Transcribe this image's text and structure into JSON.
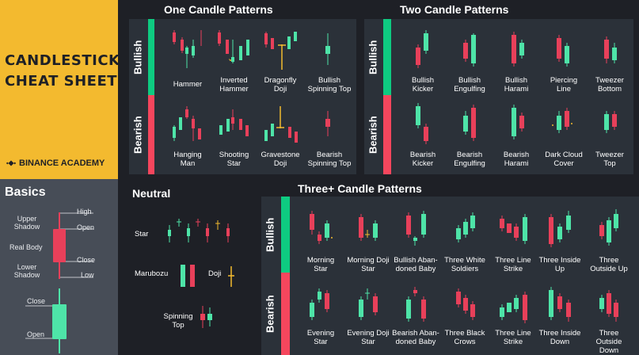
{
  "title": {
    "line1": "CANDLESTICK",
    "line2": "CHEAT SHEET"
  },
  "brand": {
    "name": "BINANCE ACADEMY",
    "logo_icon": "binance-diamond-icon"
  },
  "basics": {
    "title": "Basics",
    "labels": {
      "upper_shadow": "Upper Shadow",
      "real_body": "Real Body",
      "lower_shadow": "Lower Shadow",
      "high": "High",
      "open": "Open",
      "close": "Close",
      "low": "Low",
      "close2": "Close",
      "open2": "Open"
    }
  },
  "one_candle": {
    "title": "One Candle Patterns",
    "bullish_label": "Bullish",
    "bearish_label": "Bearish",
    "bullish": [
      "Hammer",
      "Inverted Hammer",
      "Dragonfly Doji",
      "Bullish Spinning Top"
    ],
    "bearish": [
      "Hanging Man",
      "Shooting Star",
      "Gravestone Doji",
      "Bearish Spinning Top"
    ]
  },
  "two_candle": {
    "title": "Two Candle Patterns",
    "bullish_label": "Bullish",
    "bearish_label": "Bearish",
    "bullish": [
      "Bullish Kicker",
      "Bullish Engulfing",
      "Bullish Harami",
      "Piercing Line",
      "Tweezer Bottom"
    ],
    "bearish": [
      "Bearish Kicker",
      "Bearish Engulfing",
      "Bearish Harami",
      "Dark Cloud Cover",
      "Tweezer Top"
    ]
  },
  "neutral": {
    "title": "Neutral",
    "items": [
      "Star",
      "Marubozu",
      "Doji",
      "Spinning Top"
    ]
  },
  "three_candle": {
    "title": "Three+ Candle Patterns",
    "bullish_label": "Bullish",
    "bearish_label": "Bearish",
    "bullish": [
      "Morning Star",
      "Morning Doji Star",
      "Bullish Aban-doned Baby",
      "Three White Soldiers",
      "Three Line Strike",
      "Three Inside Up",
      "Three Outside Up"
    ],
    "bearish": [
      "Evening Star",
      "Evening Doji Star",
      "Bearish Aban-doned Baby",
      "Three Black Crows",
      "Three Line Strike",
      "Three Inside Down",
      "Three Outside Down"
    ]
  },
  "colors": {
    "bull": "#4ee4a8",
    "bear": "#e8405a",
    "accent": "#f3ba2f",
    "bg": "#1e2026"
  }
}
